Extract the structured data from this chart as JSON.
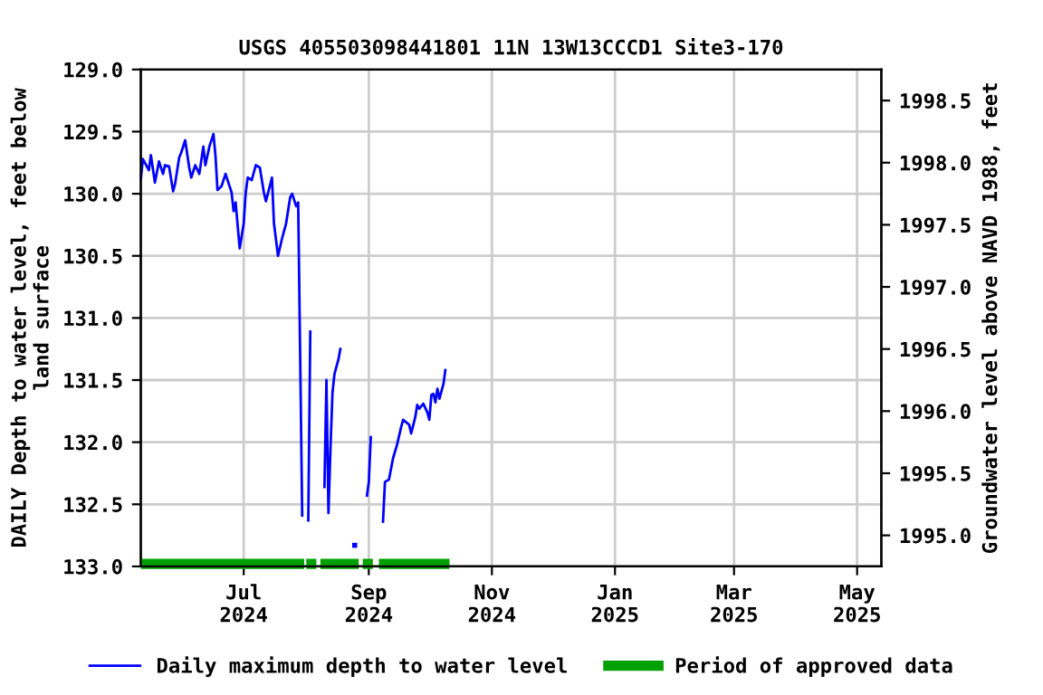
{
  "chart_data": {
    "type": "line",
    "title": "USGS 405503098441801 11N 13W13CCCD1 Site3-170",
    "ylabel": "DAILY Depth to water level, feet below\nland surface",
    "y2label": "Groundwater level above NAVD 1988, feet",
    "x": [
      "2024-05-11",
      "2024-05-12",
      "2024-05-15",
      "2024-05-16",
      "2024-05-18",
      "2024-05-20",
      "2024-05-22",
      "2024-05-23",
      "2024-05-25",
      "2024-05-27",
      "2024-05-28",
      "2024-05-30",
      "2024-05-31",
      "2024-06-02",
      "2024-06-04",
      "2024-06-05",
      "2024-06-07",
      "2024-06-09",
      "2024-06-11",
      "2024-06-12",
      "2024-06-14",
      "2024-06-16",
      "2024-06-17",
      "2024-06-18",
      "2024-06-20",
      "2024-06-22",
      "2024-06-25",
      "2024-06-26",
      "2024-06-27",
      "2024-06-29",
      "2024-07-01",
      "2024-07-02",
      "2024-07-03",
      "2024-07-05",
      "2024-07-07",
      "2024-07-09",
      "2024-07-11",
      "2024-07-12",
      "2024-07-15",
      "2024-07-16",
      "2024-07-18",
      "2024-07-20",
      "2024-07-22",
      "2024-07-24",
      "2024-07-25",
      "2024-07-27",
      "2024-07-28",
      "2024-07-29",
      "2024-07-30",
      "2024-07-31",
      "2024-08-02",
      "2024-08-03",
      "2024-08-05",
      "2024-08-10",
      "2024-08-11",
      "2024-08-12",
      "2024-08-13",
      "2024-08-14",
      "2024-08-15",
      "2024-08-17",
      "2024-08-18",
      "2024-08-19",
      "2024-08-25",
      "2024-08-26",
      "2024-08-31",
      "2024-09-01",
      "2024-09-02",
      "2024-09-03",
      "2024-09-08",
      "2024-09-09",
      "2024-09-11",
      "2024-09-13",
      "2024-09-15",
      "2024-09-17",
      "2024-09-18",
      "2024-09-21",
      "2024-09-22",
      "2024-09-24",
      "2024-09-25",
      "2024-09-26",
      "2024-09-28",
      "2024-09-30",
      "2024-10-01",
      "2024-10-02",
      "2024-10-03",
      "2024-10-04",
      "2024-10-05",
      "2024-10-06",
      "2024-10-08",
      "2024-10-09"
    ],
    "series": [
      {
        "name": "Daily maximum depth to water level",
        "color": "#0000ff",
        "values": [
          129.89,
          129.72,
          129.81,
          129.69,
          129.91,
          129.74,
          129.84,
          129.77,
          129.78,
          129.98,
          129.92,
          129.71,
          129.67,
          129.57,
          129.79,
          129.87,
          129.77,
          129.84,
          129.62,
          129.77,
          129.62,
          129.52,
          129.69,
          129.97,
          129.94,
          129.84,
          129.99,
          130.14,
          130.07,
          130.44,
          130.24,
          129.99,
          129.87,
          129.89,
          129.77,
          129.79,
          129.99,
          130.06,
          129.87,
          130.24,
          130.5,
          130.36,
          130.24,
          130.03,
          130.0,
          130.1,
          130.07,
          131.33,
          132.6,
          null,
          132.64,
          131.1,
          null,
          132.37,
          131.5,
          132.57,
          132.05,
          131.6,
          131.45,
          131.33,
          131.24,
          null,
          132.83,
          null,
          132.44,
          132.32,
          131.95,
          null,
          132.65,
          132.32,
          132.3,
          132.13,
          132.02,
          131.88,
          131.82,
          131.86,
          131.93,
          131.8,
          131.7,
          131.73,
          131.69,
          131.76,
          131.82,
          131.62,
          131.61,
          131.68,
          131.57,
          131.65,
          131.53,
          131.41
        ]
      },
      {
        "name": "Period of approved data",
        "color": "#00a000",
        "x": [
          "2024-05-11",
          "2024-07-31",
          null,
          "2024-08-01",
          "2024-08-06",
          null,
          "2024-08-08",
          "2024-08-27",
          null,
          "2024-08-29",
          "2024-09-03",
          null,
          "2024-09-06",
          "2024-10-11"
        ],
        "values": [
          132.98,
          132.98,
          null,
          132.98,
          132.98,
          null,
          132.98,
          132.98,
          null,
          132.98,
          132.98,
          null,
          132.98,
          132.98
        ]
      }
    ],
    "xlim": [
      "2024-05-11",
      "2025-05-13"
    ],
    "xticks": [
      {
        "value": "2024-07-01",
        "label": "Jul\n2024"
      },
      {
        "value": "2024-09-01",
        "label": "Sep\n2024"
      },
      {
        "value": "2024-11-01",
        "label": "Nov\n2024"
      },
      {
        "value": "2025-01-01",
        "label": "Jan\n2025"
      },
      {
        "value": "2025-03-01",
        "label": "Mar\n2025"
      },
      {
        "value": "2025-05-01",
        "label": "May\n2025"
      }
    ],
    "ylim": [
      133.0,
      129.0
    ],
    "yticks": [
      {
        "value": 129,
        "label": "129.0"
      },
      129.5,
      {
        "value": 130,
        "label": "130.0"
      },
      130.5,
      {
        "value": 131,
        "label": "131.0"
      },
      131.5,
      {
        "value": 132,
        "label": "132.0"
      },
      132.5,
      {
        "value": 133,
        "label": "133.0"
      }
    ],
    "y2lim": [
      1994.75,
      1998.75
    ],
    "y2ticks": [
      {
        "value": 1995,
        "label": "1995.0"
      },
      1995.5,
      {
        "value": 1996,
        "label": "1996.0"
      },
      1996.5,
      {
        "value": 1997,
        "label": "1997.0"
      },
      1997.5,
      {
        "value": 1998,
        "label": "1998.0"
      },
      1998.5
    ],
    "grid": true,
    "legend": "bottom"
  }
}
